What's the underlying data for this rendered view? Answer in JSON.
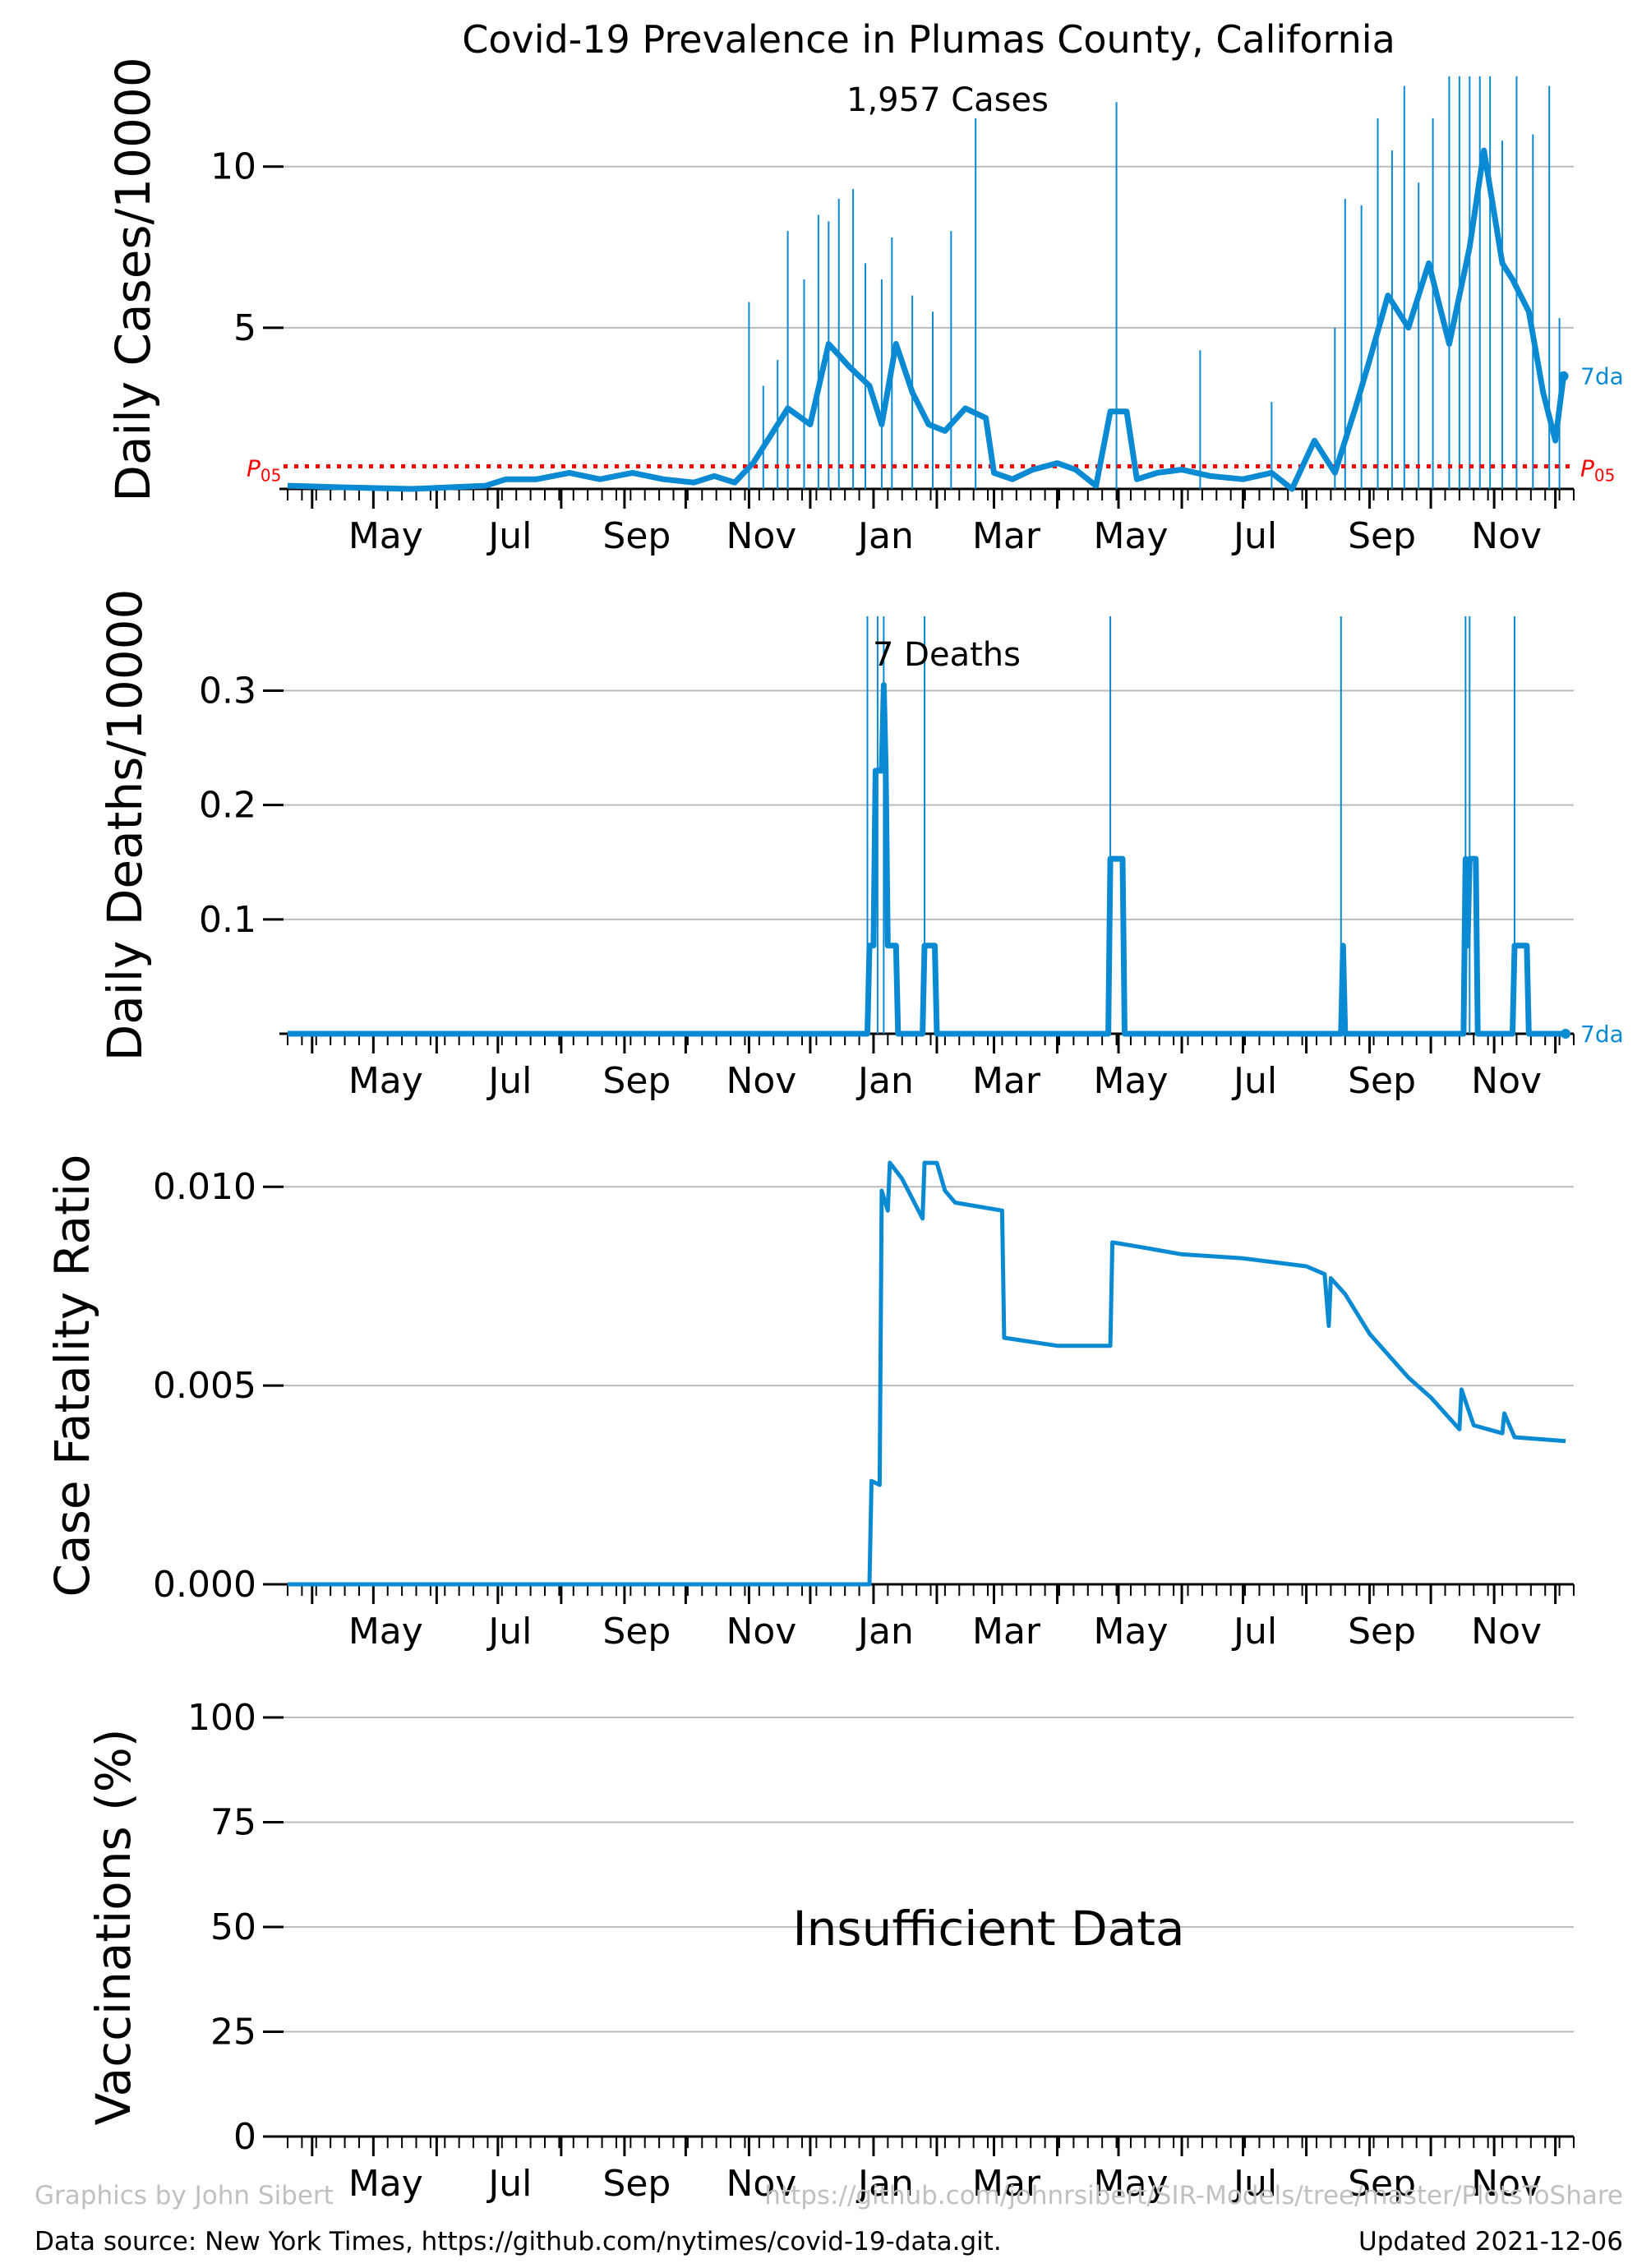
{
  "title": "Covid-19 Prevalence in Plumas County, California",
  "colors": {
    "series": "#0a8ad2",
    "threshold": "#ff0000",
    "grid": "#bbbbbb",
    "footer_grey": "#c0c0c0"
  },
  "x_month_labels": [
    "May",
    "Jul",
    "Sep",
    "Nov",
    "Jan",
    "Mar",
    "May",
    "Jul",
    "Sep",
    "Nov"
  ],
  "footer": {
    "credit": "Graphics by John Sibert",
    "repo": "https://github.com/johnrsibert/SIR-Models/tree/master/PlotsToShare",
    "source": "Data source: New York Times, https://github.com/nytimes/covid-19-data.git.",
    "updated": "Updated 2021-12-06"
  },
  "chart_data": [
    {
      "type": "bar",
      "ylabel": "Daily Cases/10000",
      "annotation": "1,957 Cases",
      "yticks": [
        5,
        10
      ],
      "ylim": [
        0,
        13
      ],
      "threshold": {
        "value": 0.7,
        "label_P": "P",
        "label_sub": "05"
      },
      "series_label": "7da",
      "moving_average_7day": [
        [
          "2020-03-20",
          0.1
        ],
        [
          "2020-04-15",
          0.05
        ],
        [
          "2020-05-20",
          0.0
        ],
        [
          "2020-06-25",
          0.1
        ],
        [
          "2020-07-05",
          0.3
        ],
        [
          "2020-07-20",
          0.3
        ],
        [
          "2020-08-05",
          0.5
        ],
        [
          "2020-08-20",
          0.3
        ],
        [
          "2020-09-05",
          0.5
        ],
        [
          "2020-09-20",
          0.3
        ],
        [
          "2020-10-05",
          0.2
        ],
        [
          "2020-10-15",
          0.4
        ],
        [
          "2020-10-25",
          0.2
        ],
        [
          "2020-11-03",
          0.8
        ],
        [
          "2020-11-10",
          1.5
        ],
        [
          "2020-11-20",
          2.5
        ],
        [
          "2020-12-01",
          2.0
        ],
        [
          "2020-12-10",
          4.5
        ],
        [
          "2020-12-20",
          3.8
        ],
        [
          "2020-12-30",
          3.2
        ],
        [
          "2021-01-05",
          2.0
        ],
        [
          "2021-01-12",
          4.5
        ],
        [
          "2021-01-20",
          3.0
        ],
        [
          "2021-01-28",
          2.0
        ],
        [
          "2021-02-05",
          1.8
        ],
        [
          "2021-02-15",
          2.5
        ],
        [
          "2021-02-25",
          2.2
        ],
        [
          "2021-03-01",
          0.5
        ],
        [
          "2021-03-10",
          0.3
        ],
        [
          "2021-03-20",
          0.6
        ],
        [
          "2021-04-01",
          0.8
        ],
        [
          "2021-04-10",
          0.6
        ],
        [
          "2021-04-20",
          0.1
        ],
        [
          "2021-04-27",
          2.4
        ],
        [
          "2021-05-05",
          2.4
        ],
        [
          "2021-05-10",
          0.3
        ],
        [
          "2021-05-20",
          0.5
        ],
        [
          "2021-06-01",
          0.6
        ],
        [
          "2021-06-15",
          0.4
        ],
        [
          "2021-07-01",
          0.3
        ],
        [
          "2021-07-15",
          0.5
        ],
        [
          "2021-07-25",
          0.0
        ],
        [
          "2021-08-05",
          1.5
        ],
        [
          "2021-08-15",
          0.5
        ],
        [
          "2021-08-25",
          2.5
        ],
        [
          "2021-09-01",
          4.0
        ],
        [
          "2021-09-10",
          6.0
        ],
        [
          "2021-09-20",
          5.0
        ],
        [
          "2021-09-30",
          7.0
        ],
        [
          "2021-10-10",
          4.5
        ],
        [
          "2021-10-20",
          7.5
        ],
        [
          "2021-10-27",
          10.5
        ],
        [
          "2021-11-05",
          7.0
        ],
        [
          "2021-11-10",
          6.5
        ],
        [
          "2021-11-18",
          5.5
        ],
        [
          "2021-11-25",
          3.0
        ],
        [
          "2021-12-01",
          1.5
        ],
        [
          "2021-12-05",
          3.5
        ]
      ],
      "daily_spikes": [
        [
          "2020-11-01",
          5.8
        ],
        [
          "2020-11-08",
          3.2
        ],
        [
          "2020-11-15",
          4.0
        ],
        [
          "2020-11-20",
          8.0
        ],
        [
          "2020-11-28",
          6.5
        ],
        [
          "2020-12-05",
          8.5
        ],
        [
          "2020-12-10",
          8.3
        ],
        [
          "2020-12-15",
          9.0
        ],
        [
          "2020-12-22",
          9.3
        ],
        [
          "2020-12-28",
          7.0
        ],
        [
          "2021-01-05",
          6.5
        ],
        [
          "2021-01-10",
          7.8
        ],
        [
          "2021-01-20",
          6.0
        ],
        [
          "2021-01-30",
          5.5
        ],
        [
          "2021-02-08",
          8.0
        ],
        [
          "2021-02-20",
          11.5
        ],
        [
          "2021-04-30",
          12.0
        ],
        [
          "2021-06-10",
          4.3
        ],
        [
          "2021-07-15",
          2.7
        ],
        [
          "2021-08-15",
          5.0
        ],
        [
          "2021-08-20",
          9.0
        ],
        [
          "2021-08-28",
          8.8
        ],
        [
          "2021-09-05",
          11.5
        ],
        [
          "2021-09-12",
          10.5
        ],
        [
          "2021-09-18",
          12.5
        ],
        [
          "2021-09-25",
          9.5
        ],
        [
          "2021-10-02",
          11.5
        ],
        [
          "2021-10-10",
          12.8
        ],
        [
          "2021-10-15",
          12.8
        ],
        [
          "2021-10-20",
          12.8
        ],
        [
          "2021-10-25",
          12.8
        ],
        [
          "2021-10-30",
          12.8
        ],
        [
          "2021-11-05",
          10.8
        ],
        [
          "2021-11-12",
          12.8
        ],
        [
          "2021-11-20",
          11.0
        ],
        [
          "2021-11-28",
          12.5
        ],
        [
          "2021-12-03",
          5.3
        ]
      ]
    },
    {
      "type": "bar",
      "ylabel": "Daily Deaths/10000",
      "annotation": "7 Deaths",
      "yticks": [
        0.1,
        0.2,
        0.3
      ],
      "ylim": [
        0,
        0.365
      ],
      "series_label": "7da",
      "moving_average_7day": [
        [
          "2020-03-20",
          0
        ],
        [
          "2020-12-29",
          0
        ],
        [
          "2020-12-30",
          0.077
        ],
        [
          "2021-01-01",
          0.077
        ],
        [
          "2021-01-02",
          0.23
        ],
        [
          "2021-01-05",
          0.23
        ],
        [
          "2021-01-06",
          0.305
        ],
        [
          "2021-01-07",
          0.23
        ],
        [
          "2021-01-08",
          0.077
        ],
        [
          "2021-01-12",
          0.077
        ],
        [
          "2021-01-13",
          0
        ],
        [
          "2021-01-25",
          0
        ],
        [
          "2021-01-26",
          0.077
        ],
        [
          "2021-01-31",
          0.077
        ],
        [
          "2021-02-01",
          0
        ],
        [
          "2021-04-26",
          0
        ],
        [
          "2021-04-27",
          0.153
        ],
        [
          "2021-05-03",
          0.153
        ],
        [
          "2021-05-04",
          0
        ],
        [
          "2021-08-18",
          0
        ],
        [
          "2021-08-19",
          0.077
        ],
        [
          "2021-08-20",
          0
        ],
        [
          "2021-10-17",
          0
        ],
        [
          "2021-10-18",
          0.153
        ],
        [
          "2021-10-19",
          0.077
        ],
        [
          "2021-10-20",
          0.153
        ],
        [
          "2021-10-23",
          0.153
        ],
        [
          "2021-10-24",
          0
        ],
        [
          "2021-11-10",
          0
        ],
        [
          "2021-11-11",
          0.077
        ],
        [
          "2021-11-17",
          0.077
        ],
        [
          "2021-11-18",
          0
        ],
        [
          "2021-12-06",
          0
        ]
      ],
      "daily_spikes": [
        [
          "2020-12-29",
          0.365
        ],
        [
          "2021-01-03",
          0.365
        ],
        [
          "2021-01-06",
          0.365
        ],
        [
          "2021-01-26",
          0.365
        ],
        [
          "2021-04-27",
          0.365
        ],
        [
          "2021-08-18",
          0.365
        ],
        [
          "2021-10-18",
          0.365
        ],
        [
          "2021-10-20",
          0.365
        ],
        [
          "2021-11-11",
          0.365
        ]
      ]
    },
    {
      "type": "line",
      "ylabel": "Case Fatality Ratio",
      "yticks": [
        "0.000",
        "0.005",
        "0.010"
      ],
      "ylim": [
        0,
        0.0105
      ],
      "values": [
        [
          "2020-03-20",
          0
        ],
        [
          "2020-12-30",
          0
        ],
        [
          "2020-12-31",
          0.0026
        ],
        [
          "2021-01-04",
          0.0025
        ],
        [
          "2021-01-05",
          0.0099
        ],
        [
          "2021-01-08",
          0.0094
        ],
        [
          "2021-01-09",
          0.0112
        ],
        [
          "2021-01-12",
          0.0104
        ],
        [
          "2021-01-15",
          0.0102
        ],
        [
          "2021-01-25",
          0.0092
        ],
        [
          "2021-01-26",
          0.011
        ],
        [
          "2021-02-01",
          0.0106
        ],
        [
          "2021-02-05",
          0.0099
        ],
        [
          "2021-02-10",
          0.0096
        ],
        [
          "2021-03-05",
          0.0094
        ],
        [
          "2021-03-06",
          0.0062
        ],
        [
          "2021-04-01",
          0.006
        ],
        [
          "2021-04-27",
          0.006
        ],
        [
          "2021-04-28",
          0.0086
        ],
        [
          "2021-05-10",
          0.0085
        ],
        [
          "2021-06-01",
          0.0083
        ],
        [
          "2021-07-01",
          0.0082
        ],
        [
          "2021-08-01",
          0.008
        ],
        [
          "2021-08-10",
          0.0078
        ],
        [
          "2021-08-12",
          0.0065
        ],
        [
          "2021-08-13",
          0.0077
        ],
        [
          "2021-08-20",
          0.0073
        ],
        [
          "2021-09-01",
          0.0063
        ],
        [
          "2021-09-20",
          0.0052
        ],
        [
          "2021-10-01",
          0.0047
        ],
        [
          "2021-10-15",
          0.0039
        ],
        [
          "2021-10-16",
          0.0049
        ],
        [
          "2021-10-22",
          0.004
        ],
        [
          "2021-11-05",
          0.0038
        ],
        [
          "2021-11-06",
          0.0043
        ],
        [
          "2021-11-11",
          0.0037
        ],
        [
          "2021-12-06",
          0.0036
        ]
      ]
    },
    {
      "type": "line",
      "ylabel": "Vaccinations (%)",
      "yticks": [
        0,
        25,
        50,
        75,
        100
      ],
      "ylim": [
        0,
        100
      ],
      "annotation": "Insufficient Data",
      "values": []
    }
  ]
}
